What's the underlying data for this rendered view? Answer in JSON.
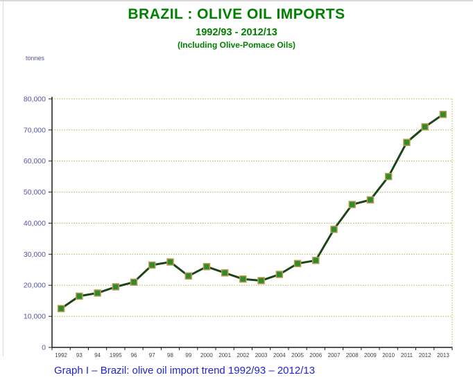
{
  "page": {
    "title": "BRAZIL : OLIVE OIL IMPORTS",
    "subtitle": "1992/93 - 2012/13",
    "subtitle2": "(Including Olive-Pomace Oils)",
    "y_unit_label": "tonnes",
    "caption": "Graph I – Brazil: olive oil import trend 1992/93 – 2012/13"
  },
  "colors": {
    "title-green": "#008000",
    "caption-blue": "#2323cc",
    "axis-label-blue": "#5353a8",
    "x-label-gray": "#404040",
    "gridline-olive": "#b3b33e",
    "axis-dark": "#1a1a1a",
    "line-dark-green": "#1c4517",
    "marker-green": "#2e8b2e",
    "marker-border-tan": "#bf9b4f"
  },
  "chart_data": {
    "type": "line",
    "title": "BRAZIL : OLIVE OIL IMPORTS",
    "subtitle": "1992/93 - 2012/13",
    "note": "(Including Olive-Pomace Oils)",
    "series_name": "Olive oil imports",
    "ylabel": "tonnes",
    "xlabel": "",
    "ylim": [
      0,
      80000
    ],
    "ytick_interval": 10000,
    "ytick_labels": [
      "0",
      "10,000",
      "20,000",
      "30,000",
      "40,000",
      "50,000",
      "60,000",
      "70,000",
      "80,000"
    ],
    "grid": "horizontal-dashed",
    "legend_position": "none",
    "marker": "square",
    "categories": [
      "1992",
      "93",
      "94",
      "1995",
      "96",
      "97",
      "98",
      "99",
      "2000",
      "2001",
      "2002",
      "2003",
      "2004",
      "2005",
      "2006",
      "2007",
      "2008",
      "2009",
      "2010",
      "2011",
      "2012",
      "2013"
    ],
    "values": [
      12500,
      16500,
      17500,
      19500,
      21000,
      26500,
      27500,
      23000,
      26000,
      24000,
      22000,
      21500,
      23500,
      27000,
      28000,
      38000,
      46000,
      47500,
      55000,
      66000,
      71000,
      75000
    ]
  }
}
